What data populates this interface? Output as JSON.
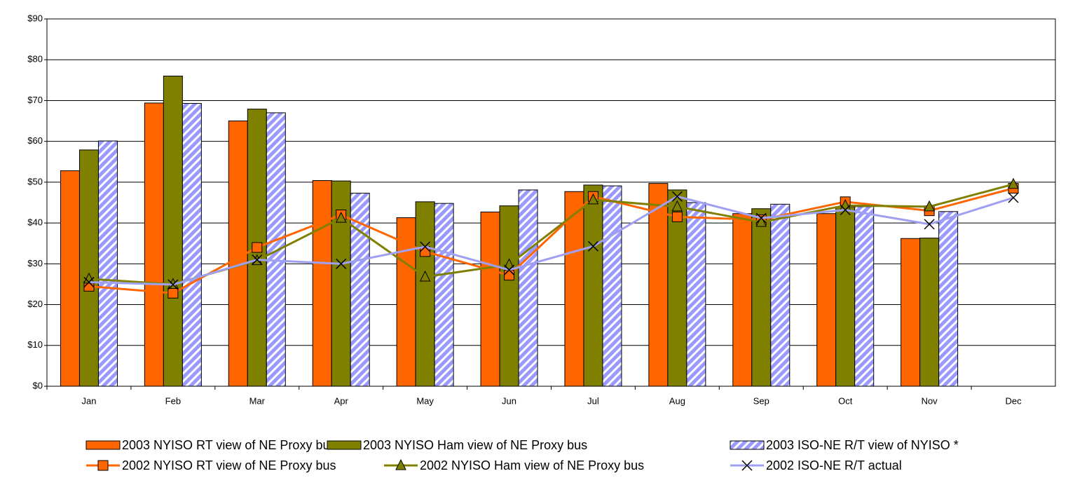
{
  "chart_data": {
    "type": "bar",
    "categories": [
      "Jan",
      "Feb",
      "Mar",
      "Apr",
      "May",
      "Jun",
      "Jul",
      "Aug",
      "Sep",
      "Oct",
      "Nov",
      "Dec"
    ],
    "ylim": [
      0,
      90
    ],
    "yticks": [
      {
        "value": 0,
        "label": "$0"
      },
      {
        "value": 10,
        "label": "$10"
      },
      {
        "value": 20,
        "label": "$20"
      },
      {
        "value": 30,
        "label": "$30"
      },
      {
        "value": 40,
        "label": "$40"
      },
      {
        "value": 50,
        "label": "$50"
      },
      {
        "value": 60,
        "label": "$60"
      },
      {
        "value": 70,
        "label": "$70"
      },
      {
        "value": 80,
        "label": "$80"
      },
      {
        "value": 90,
        "label": "$90"
      }
    ],
    "grid": true,
    "series": [
      {
        "name": "2003 NYISO RT view of NE Proxy bus",
        "type": "bar",
        "color": "#ff6600",
        "values": [
          52.8,
          69.4,
          65.0,
          50.4,
          41.3,
          42.7,
          47.7,
          49.7,
          42.3,
          42.3,
          36.2,
          null
        ]
      },
      {
        "name": "2003 NYISO Ham view of NE Proxy bus",
        "type": "bar",
        "color": "#808000",
        "values": [
          57.9,
          76.0,
          67.9,
          50.3,
          45.2,
          44.2,
          49.3,
          48.1,
          43.5,
          44.0,
          36.3,
          null
        ]
      },
      {
        "name": "2003 ISO-NE R/T view of NYISO *",
        "type": "bar",
        "color": "#9999ff",
        "hatch": true,
        "values": [
          60.1,
          69.3,
          67.0,
          47.3,
          44.8,
          48.1,
          49.1,
          45.0,
          44.6,
          44.0,
          42.8,
          null
        ]
      },
      {
        "name": "2002 NYISO RT view of NE Proxy bus",
        "type": "line",
        "color": "#ff6600",
        "marker": "square",
        "values": [
          24.5,
          22.8,
          34.0,
          42.0,
          33.0,
          27.2,
          46.5,
          41.5,
          40.8,
          45.2,
          43.0,
          48.5
        ]
      },
      {
        "name": "2002 NYISO Ham view of NE Proxy bus",
        "type": "line",
        "color": "#808000",
        "marker": "triangle",
        "values": [
          26.3,
          25.0,
          30.8,
          41.2,
          26.8,
          29.8,
          45.7,
          44.0,
          40.2,
          44.3,
          44.0,
          49.5
        ]
      },
      {
        "name": "2002 ISO-NE R/T actual",
        "type": "line",
        "color": "#a0a0f0",
        "marker": "x",
        "values": [
          25.5,
          24.9,
          31.0,
          30.0,
          34.2,
          28.5,
          34.3,
          46.5,
          41.2,
          43.2,
          39.7,
          46.2
        ]
      }
    ]
  }
}
